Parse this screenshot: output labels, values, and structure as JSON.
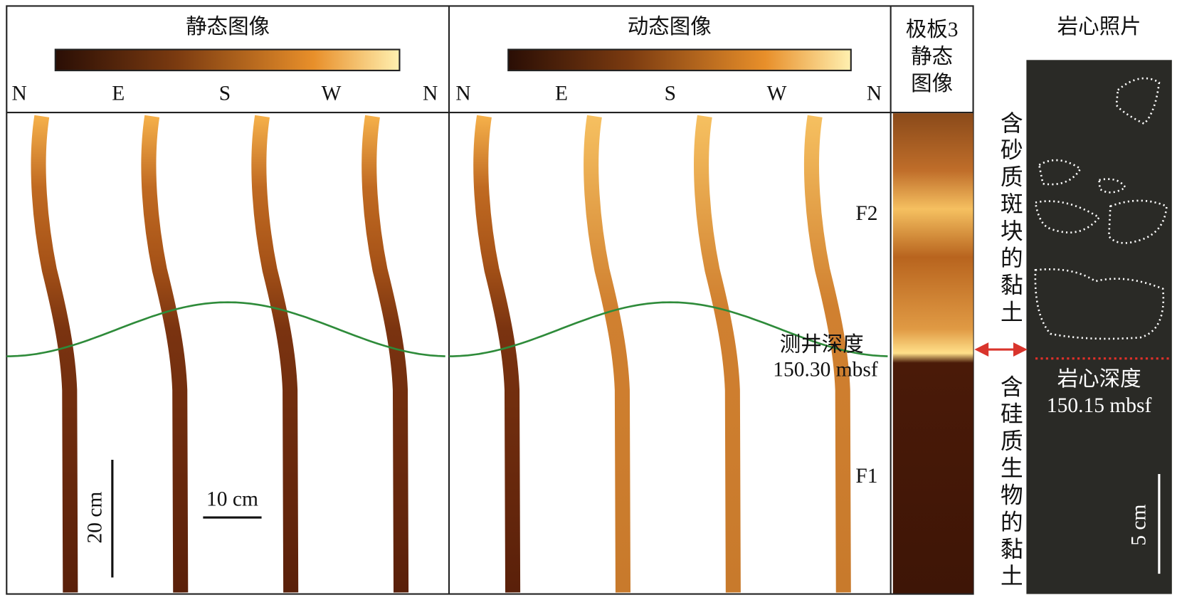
{
  "panels": {
    "static": {
      "title": "静态图像",
      "compass": [
        "N",
        "E",
        "S",
        "W",
        "N"
      ]
    },
    "dynamic": {
      "title": "动态图像",
      "compass": [
        "N",
        "E",
        "S",
        "W",
        "N"
      ]
    },
    "pad": {
      "title": [
        "极板3",
        "静态",
        "图像"
      ]
    },
    "core": {
      "title": "岩心照片"
    }
  },
  "annotations": {
    "f2": "F2",
    "f1": "F1",
    "log_depth_label": "测井深度",
    "log_depth": "150.30 mbsf",
    "core_depth_label": "岩心深度",
    "core_depth": "150.15 mbsf"
  },
  "scale_bars": {
    "vertical": "20 cm",
    "horizontal": "10 cm",
    "core": "5 cm"
  },
  "lithology": {
    "upper": "含砂质斑块的黏土",
    "lower": "含硅质生物的黏土"
  }
}
